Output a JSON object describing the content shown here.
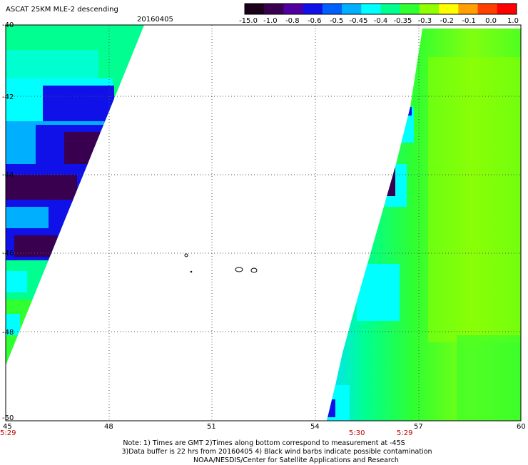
{
  "header": {
    "title": "ASCAT 25KM MLE-2 descending",
    "date": "20160405"
  },
  "colorbar": {
    "tick_labels": [
      "-15.0",
      "-1.0",
      "-0.8",
      "-0.6",
      "-0.5",
      "-0.45",
      "-0.4",
      "-0.35",
      "-0.3",
      "-0.2",
      "-0.1",
      "0.0",
      "1.0"
    ],
    "colors": [
      "#1a0018",
      "#3a0050",
      "#5000a0",
      "#1010e8",
      "#0060ff",
      "#00b0ff",
      "#00ffff",
      "#00ff90",
      "#30ff30",
      "#90ff00",
      "#ffff00",
      "#ffa000",
      "#ff4000",
      "#ff0000"
    ]
  },
  "axes": {
    "lat_labels": [
      "-40",
      "-42",
      "-44",
      "-46",
      "-48",
      "-50"
    ],
    "lon_labels": [
      "45",
      "48",
      "51",
      "54",
      "57",
      "60"
    ]
  },
  "time_labels": [
    "5:29",
    "5:30",
    "5:29"
  ],
  "notes": [
    "Note: 1) Times are GMT 2)Times along bottom correspond to measurement at -45S",
    "3)Data buffer is 22 hrs from 20160405 4) Black wind barbs indicate possible contamination",
    "NOAA/NESDIS/Center for Satellite Applications and Research"
  ]
}
